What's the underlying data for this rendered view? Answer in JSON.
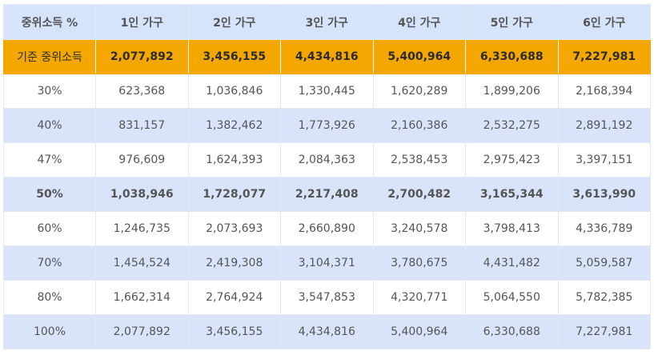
{
  "table": {
    "headers": [
      "중위소득 %",
      "1인 가구",
      "2인 가구",
      "3인 가구",
      "4인 가구",
      "5인 가구",
      "6인 가구"
    ],
    "rows": [
      {
        "label": "기준 중위소득",
        "values": [
          "2,077,892",
          "3,456,155",
          "4,434,816",
          "5,400,964",
          "6,330,688",
          "7,227,981"
        ]
      },
      {
        "label": "30%",
        "values": [
          "623,368",
          "1,036,846",
          "1,330,445",
          "1,620,289",
          "1,899,206",
          "2,168,394"
        ]
      },
      {
        "label": "40%",
        "values": [
          "831,157",
          "1,382,462",
          "1,773,926",
          "2,160,386",
          "2,532,275",
          "2,891,192"
        ]
      },
      {
        "label": "47%",
        "values": [
          "976,609",
          "1,624,393",
          "2,084,363",
          "2,538,453",
          "2,975,423",
          "3,397,151"
        ]
      },
      {
        "label": "50%",
        "values": [
          "1,038,946",
          "1,728,077",
          "2,217,408",
          "2,700,482",
          "3,165,344",
          "3,613,990"
        ]
      },
      {
        "label": "60%",
        "values": [
          "1,246,735",
          "2,073,693",
          "2,660,890",
          "3,240,578",
          "3,798,413",
          "4,336,789"
        ]
      },
      {
        "label": "70%",
        "values": [
          "1,454,524",
          "2,419,308",
          "3,104,371",
          "3,780,675",
          "4,431,482",
          "5,059,587"
        ]
      },
      {
        "label": "80%",
        "values": [
          "1,662,314",
          "2,764,924",
          "3,547,853",
          "4,320,771",
          "5,064,550",
          "5,782,385"
        ]
      },
      {
        "label": "100%",
        "values": [
          "2,077,892",
          "3,456,155",
          "4,434,816",
          "5,400,964",
          "6,330,688",
          "7,227,981"
        ]
      }
    ]
  },
  "colors": {
    "header_bg": "#d5e3fb",
    "median_row_bg": "#f3a700",
    "shaded_row_bg": "#d9e4fa",
    "text": "#555555"
  }
}
